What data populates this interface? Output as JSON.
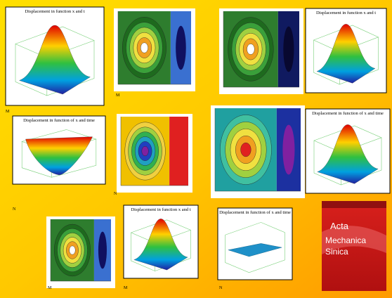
{
  "surface_plots": [
    {
      "title": "Displacement in function x and t"
    },
    {
      "title": "Displacement in function x and t"
    },
    {
      "title": "Displacement in function of x and time"
    },
    {
      "title": "Displacement in function of x and time"
    },
    {
      "title": "Displacement in function x and t"
    },
    {
      "title": "Displacement in function of x and time"
    }
  ],
  "labels": [
    "M",
    "M",
    "N",
    "N",
    "M",
    "M",
    "N"
  ],
  "cover": {
    "lines": [
      "Acta",
      "Mechanica",
      "Sinica"
    ]
  }
}
